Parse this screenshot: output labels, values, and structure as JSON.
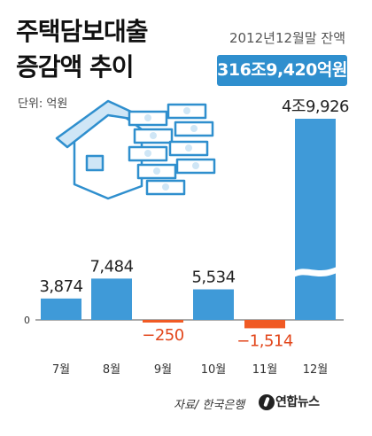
{
  "title": [
    "주택담보대출",
    "증감액 추이"
  ],
  "subtitle": "2012년12월말 잔액",
  "badge": "316조9,420억원",
  "unit": "단위: 억원",
  "source": "자료/ 한국은행",
  "logo_text": "연합뉴스",
  "colors": {
    "positive": "#3f9ad8",
    "negative": "#f05a24",
    "badge": "#2f8fce",
    "axis": "#555555"
  },
  "chart_data": {
    "type": "bar",
    "title": "주택담보대출 증감액 추이",
    "ylabel": "단위: 억원",
    "categories": [
      "7월",
      "8월",
      "9월",
      "10월",
      "11월",
      "12월"
    ],
    "values": [
      3874,
      7484,
      -250,
      5534,
      -1514,
      49926
    ],
    "value_labels": [
      "3,874",
      "7,484",
      "−250",
      "5,534",
      "−1,514",
      "4조9,926"
    ],
    "zero_label": "0",
    "axis_break": "12월",
    "grid": false,
    "legend": "none"
  }
}
